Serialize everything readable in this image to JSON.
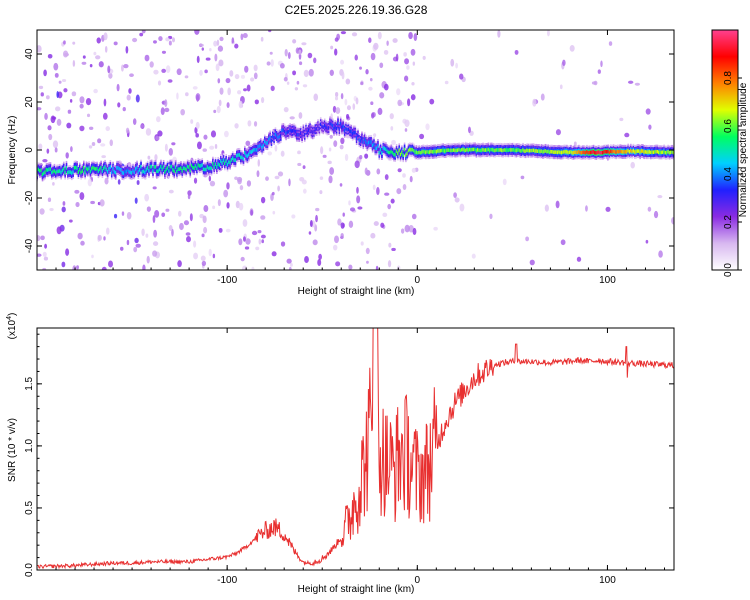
{
  "title": "C2E5.2025.226.19.36.G28",
  "chart_data": [
    {
      "type": "heatmap",
      "xlabel": "Height of straight line (km)",
      "ylabel": "Frequency (Hz)",
      "xlim": [
        -200,
        135
      ],
      "ylim": [
        -50,
        50
      ],
      "x_ticks": [
        -100,
        0,
        100
      ],
      "y_ticks": [
        -40,
        -20,
        0,
        20,
        40
      ],
      "x_tick_labels": [
        "-100",
        "0",
        "100"
      ],
      "y_tick_labels": [
        "-40",
        "-20",
        "0",
        "20",
        "40"
      ],
      "ridge": [
        {
          "x": -200,
          "y": -9,
          "a": 0.55
        },
        {
          "x": -185,
          "y": -8.5,
          "a": 0.5
        },
        {
          "x": -170,
          "y": -8,
          "a": 0.55
        },
        {
          "x": -155,
          "y": -8.5,
          "a": 0.4
        },
        {
          "x": -140,
          "y": -8,
          "a": 0.5
        },
        {
          "x": -125,
          "y": -8,
          "a": 0.55
        },
        {
          "x": -110,
          "y": -7,
          "a": 0.5
        },
        {
          "x": -100,
          "y": -5,
          "a": 0.5
        },
        {
          "x": -90,
          "y": -2,
          "a": 0.45
        },
        {
          "x": -80,
          "y": 3,
          "a": 0.4
        },
        {
          "x": -70,
          "y": 8,
          "a": 0.35
        },
        {
          "x": -60,
          "y": 7,
          "a": 0.3
        },
        {
          "x": -50,
          "y": 10,
          "a": 0.3
        },
        {
          "x": -40,
          "y": 10,
          "a": 0.35
        },
        {
          "x": -30,
          "y": 5,
          "a": 0.35
        },
        {
          "x": -20,
          "y": 0,
          "a": 0.45
        },
        {
          "x": -10,
          "y": -1,
          "a": 0.6
        },
        {
          "x": 0,
          "y": -1,
          "a": 0.6
        },
        {
          "x": 20,
          "y": 0,
          "a": 0.6
        },
        {
          "x": 50,
          "y": 0,
          "a": 0.6
        },
        {
          "x": 80,
          "y": -1,
          "a": 0.65
        },
        {
          "x": 95,
          "y": -1,
          "a": 0.95
        },
        {
          "x": 110,
          "y": -0.5,
          "a": 0.7
        },
        {
          "x": 135,
          "y": -1,
          "a": 0.6
        }
      ],
      "colorbar": {
        "label": "Normalized spectral amplitude",
        "range": [
          0,
          1
        ],
        "ticks": [
          0,
          0.2,
          0.4,
          0.6,
          0.8
        ],
        "tick_labels": [
          "0.0",
          "0.2",
          "0.4",
          "0.6",
          "0.8"
        ],
        "colors": [
          "#ffffff",
          "#d8b8f0",
          "#8a2be2",
          "#2020ff",
          "#00d0ff",
          "#00ff60",
          "#e0ff00",
          "#ff8000",
          "#ff0000",
          "#ff4090"
        ]
      }
    },
    {
      "type": "line",
      "xlabel": "Height of straight line (km)",
      "ylabel": "SNR (10 * v/v)",
      "y_multiplier": "(x10",
      "y_multiplier_exp": "4",
      "y_multiplier_close": ")",
      "xlim": [
        -200,
        135
      ],
      "ylim": [
        0,
        1.95
      ],
      "x_ticks": [
        -100,
        0,
        100
      ],
      "y_ticks": [
        0,
        0.5,
        1.0,
        1.5
      ],
      "x_tick_labels": [
        "-100",
        "0",
        "100"
      ],
      "y_tick_labels": [
        "0.0",
        "0.5",
        "1.0",
        "1.5"
      ],
      "color": "#e83030",
      "series": [
        {
          "x": [
            -200,
            -180,
            -160,
            -150,
            -140,
            -120,
            -110,
            -100,
            -95,
            -90,
            -85,
            -80,
            -75,
            -70,
            -65,
            -60,
            -55,
            -50,
            -45,
            -40,
            -35,
            -30,
            -27,
            -25,
            -22,
            -20,
            -18,
            -15,
            -12,
            -10,
            -8,
            -5,
            0,
            5,
            10,
            15,
            20,
            25,
            30,
            35,
            40,
            45,
            50,
            55,
            60,
            70,
            80,
            85,
            90,
            95,
            100,
            110,
            120,
            135
          ],
          "y": [
            0.02,
            0.03,
            0.05,
            0.05,
            0.06,
            0.06,
            0.08,
            0.1,
            0.13,
            0.18,
            0.25,
            0.3,
            0.33,
            0.28,
            0.15,
            0.06,
            0.05,
            0.08,
            0.15,
            0.25,
            0.45,
            0.7,
            0.9,
            1.1,
            0.95,
            1.0,
            0.9,
            0.85,
            0.8,
            0.9,
            0.95,
            0.92,
            0.75,
            0.8,
            1.0,
            1.2,
            1.35,
            1.45,
            1.55,
            1.6,
            1.65,
            1.67,
            1.68,
            1.68,
            1.68,
            1.67,
            1.68,
            1.69,
            1.68,
            1.69,
            1.68,
            1.67,
            1.66,
            1.65
          ]
        }
      ]
    }
  ]
}
